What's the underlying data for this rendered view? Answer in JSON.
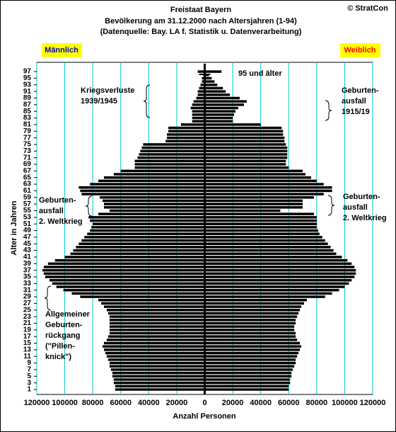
{
  "chart_data": {
    "type": "pyramid",
    "title": "Freistaat Bayern",
    "subtitle": [
      "Bevölkerung am 31.12.2000 nach Altersjahren (1-94)",
      "(Datenquelle: Bay. LA f. Statistik u. Datenverarbeitung)"
    ],
    "copyright": "© StratCon",
    "x_label": "Anzahl Personen",
    "y_label": "Alter in Jahren",
    "categories": [
      1,
      2,
      3,
      4,
      5,
      6,
      7,
      8,
      9,
      10,
      11,
      12,
      13,
      14,
      15,
      16,
      17,
      18,
      19,
      20,
      21,
      22,
      23,
      24,
      25,
      26,
      27,
      28,
      29,
      30,
      31,
      32,
      33,
      34,
      35,
      36,
      37,
      38,
      39,
      40,
      41,
      42,
      43,
      44,
      45,
      46,
      47,
      48,
      49,
      50,
      51,
      52,
      53,
      54,
      55,
      56,
      57,
      58,
      59,
      60,
      61,
      62,
      63,
      64,
      65,
      66,
      67,
      68,
      69,
      70,
      71,
      72,
      73,
      74,
      75,
      76,
      77,
      78,
      79,
      80,
      81,
      82,
      83,
      84,
      85,
      86,
      87,
      88,
      89,
      90,
      91,
      92,
      93,
      94,
      95,
      96,
      97
    ],
    "series": [
      {
        "name": "Männlich",
        "color": "#000000",
        "side": "left",
        "values": [
          64000,
          64000,
          65000,
          65000,
          66000,
          66000,
          67000,
          68000,
          68000,
          69000,
          70000,
          71000,
          72000,
          73000,
          72000,
          70000,
          69000,
          68000,
          68000,
          68000,
          68000,
          68000,
          68000,
          69000,
          70000,
          72000,
          74000,
          76000,
          89000,
          95000,
          101000,
          106000,
          109000,
          111000,
          114000,
          115000,
          116000,
          115000,
          112000,
          107000,
          100000,
          96000,
          94000,
          92000,
          90000,
          88000,
          86000,
          84000,
          82000,
          81000,
          80000,
          82000,
          83000,
          76000,
          68000,
          72000,
          72000,
          73000,
          75000,
          88000,
          89000,
          90000,
          82000,
          76000,
          72000,
          65000,
          60000,
          50000,
          50000,
          50000,
          48000,
          47000,
          46000,
          45000,
          44000,
          28000,
          27000,
          27000,
          26000,
          26000,
          17000,
          9000,
          9000,
          9000,
          9000,
          10000,
          9000,
          8000,
          6000,
          5000,
          5000,
          4000,
          3000,
          2000,
          2000,
          1000,
          5000
        ]
      },
      {
        "name": "Weiblich",
        "color": "#000000",
        "side": "right",
        "values": [
          60000,
          60000,
          61000,
          61000,
          62000,
          62000,
          63000,
          64000,
          65000,
          65000,
          66000,
          67000,
          68000,
          69000,
          68000,
          66000,
          65000,
          65000,
          64000,
          64000,
          65000,
          65000,
          66000,
          67000,
          68000,
          69000,
          71000,
          73000,
          86000,
          91000,
          96000,
          100000,
          103000,
          105000,
          107000,
          108000,
          108000,
          107000,
          105000,
          102000,
          98000,
          94000,
          92000,
          90000,
          88000,
          86000,
          84000,
          82000,
          81000,
          80000,
          80000,
          80000,
          80000,
          78000,
          54000,
          70000,
          70000,
          70000,
          78000,
          85000,
          91000,
          91000,
          85000,
          80000,
          76000,
          72000,
          70000,
          60000,
          58000,
          58000,
          59000,
          59000,
          59000,
          59000,
          58000,
          57000,
          57000,
          56000,
          56000,
          55000,
          40000,
          20000,
          20000,
          21000,
          22000,
          24000,
          28000,
          30000,
          25000,
          18000,
          15000,
          13000,
          9000,
          7000,
          5000,
          3000,
          12000
        ]
      }
    ],
    "xlim": [
      -120000,
      120000
    ],
    "xticks": [
      {
        "value": -120000,
        "label": "120000"
      },
      {
        "value": -100000,
        "label": "100000"
      },
      {
        "value": -80000,
        "label": "80000"
      },
      {
        "value": -60000,
        "label": "60000"
      },
      {
        "value": -40000,
        "label": "40000"
      },
      {
        "value": -20000,
        "label": "20000"
      },
      0,
      20000,
      40000,
      60000,
      80000,
      100000,
      120000
    ],
    "ylim": [
      -0.5,
      99.8
    ],
    "yticks": [
      1,
      3,
      5,
      7,
      9,
      11,
      13,
      15,
      17,
      19,
      21,
      23,
      25,
      27,
      29,
      31,
      33,
      35,
      37,
      39,
      41,
      43,
      45,
      47,
      49,
      51,
      53,
      55,
      57,
      59,
      61,
      63,
      65,
      67,
      69,
      71,
      73,
      75,
      77,
      79,
      81,
      83,
      85,
      87,
      89,
      91,
      93,
      95,
      97
    ],
    "grid": true,
    "grid_color": "#00c8c8",
    "annotations": [
      {
        "lines": [
          "95 und älter"
        ]
      },
      {
        "lines": [
          "Kriegsverluste",
          "1939/1945"
        ]
      },
      {
        "lines": [
          "Geburten-",
          "ausfall",
          "1915/19"
        ]
      },
      {
        "lines": [
          "Geburten-",
          "ausfall",
          "2. Weltkrieg"
        ]
      },
      {
        "lines": [
          "Geburten-",
          "ausfall",
          "2. Weltkrieg"
        ]
      },
      {
        "lines": [
          "Allgemeiner",
          "Geburten-",
          "rückgang",
          "(\"Pillen-",
          "knick\")"
        ]
      }
    ]
  }
}
